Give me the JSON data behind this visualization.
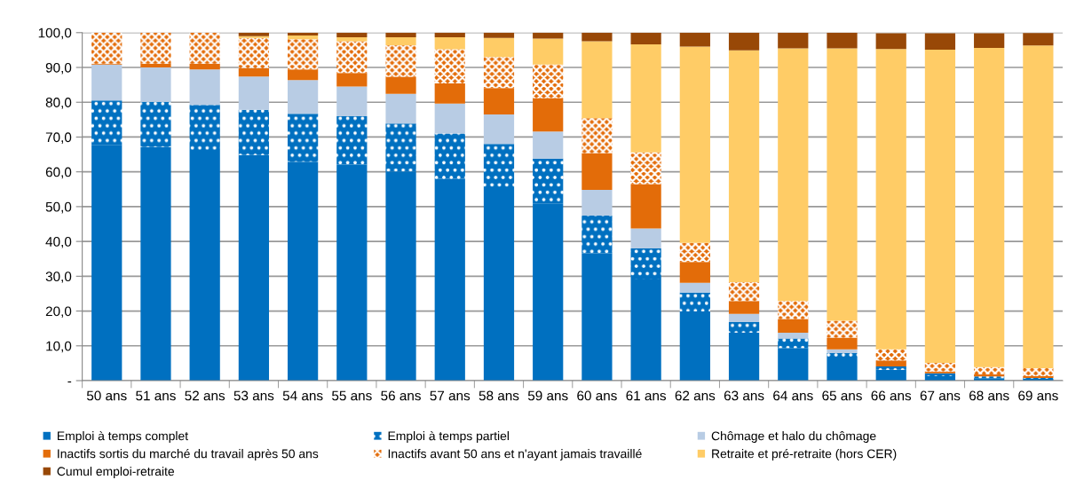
{
  "chart_data": {
    "type": "bar",
    "stacked": true,
    "categories": [
      "50 ans",
      "51 ans",
      "52 ans",
      "53 ans",
      "54 ans",
      "55 ans",
      "56 ans",
      "57 ans",
      "58 ans",
      "59 ans",
      "60 ans",
      "61 ans",
      "62 ans",
      "63 ans",
      "64 ans",
      "65 ans",
      "66 ans",
      "67 ans",
      "68 ans",
      "69 ans"
    ],
    "series": [
      {
        "name": "Emploi à temps complet",
        "color": "#0070c0",
        "values": [
          67.6,
          67.1,
          66.3,
          64.8,
          62.9,
          62.1,
          60.1,
          58.0,
          54.8,
          50.8,
          36.6,
          29.1,
          19.9,
          13.8,
          9.4,
          6.4,
          3.1,
          1.3,
          0.7,
          0.5
        ]
      },
      {
        "name": "Emploi à temps partiel",
        "color": "#0070c0",
        "values": [
          12.9,
          13.0,
          12.9,
          13.0,
          13.8,
          13.9,
          13.8,
          13.0,
          13.2,
          13.0,
          10.8,
          8.9,
          5.4,
          3.0,
          2.7,
          1.5,
          1.0,
          0.8,
          0.5,
          0.3
        ]
      },
      {
        "name": "Chômage et halo du chômage",
        "color": "#b8cce4",
        "values": [
          10.3,
          9.9,
          10.2,
          9.6,
          9.7,
          8.5,
          8.5,
          8.6,
          8.5,
          7.8,
          7.4,
          5.7,
          2.8,
          2.4,
          1.7,
          1.1,
          null,
          null,
          null,
          null
        ]
      },
      {
        "name": "Inactifs sortis du marché du travail après 50 ans",
        "color": "#e36c09",
        "values": [
          0.3,
          1.1,
          1.7,
          2.4,
          3.0,
          3.9,
          4.9,
          5.8,
          7.6,
          9.6,
          10.6,
          12.8,
          6.0,
          3.7,
          3.9,
          3.4,
          1.7,
          0.5,
          0.6,
          0.5
        ]
      },
      {
        "name": "Inactifs avant 50 ans et n'ayant jamais travaillé",
        "color": "#e36c09",
        "values": [
          8.9,
          8.9,
          8.9,
          8.7,
          8.7,
          9.1,
          9.1,
          9.8,
          8.9,
          9.6,
          10.0,
          9.1,
          5.5,
          5.4,
          5.2,
          4.8,
          3.2,
          2.5,
          2.1,
          2.3
        ]
      },
      {
        "name": "Retraite et pré-retraite (hors CER)",
        "color": "#ffcc66",
        "values": [
          0,
          0,
          0,
          0.5,
          1.1,
          1.2,
          2.3,
          3.5,
          5.5,
          7.5,
          22.1,
          31.0,
          56.4,
          66.6,
          72.6,
          78.3,
          86.3,
          90.0,
          91.7,
          92.7
        ]
      },
      {
        "name": "Cumul emploi-retraite",
        "color": "#984807",
        "values": [
          0,
          0,
          0,
          1.0,
          0.8,
          1.3,
          1.3,
          1.3,
          1.5,
          1.7,
          2.5,
          3.4,
          4.0,
          5.1,
          4.5,
          4.5,
          4.5,
          4.7,
          4.2,
          3.6
        ]
      }
    ],
    "ylim": [
      0,
      100
    ],
    "yticks": [
      {
        "value": 0,
        "label": "-"
      },
      {
        "value": 10,
        "label": "10,0"
      },
      {
        "value": 20,
        "label": "20,0"
      },
      {
        "value": 30,
        "label": "30,0"
      },
      {
        "value": 40,
        "label": "40,0"
      },
      {
        "value": 50,
        "label": "50,0"
      },
      {
        "value": 60,
        "label": "60,0"
      },
      {
        "value": 70,
        "label": "70,0"
      },
      {
        "value": 80,
        "label": "80,0"
      },
      {
        "value": 90,
        "label": "90,0"
      },
      {
        "value": 100,
        "label": "100,0"
      }
    ],
    "grid": "y",
    "legend": "bottom"
  }
}
